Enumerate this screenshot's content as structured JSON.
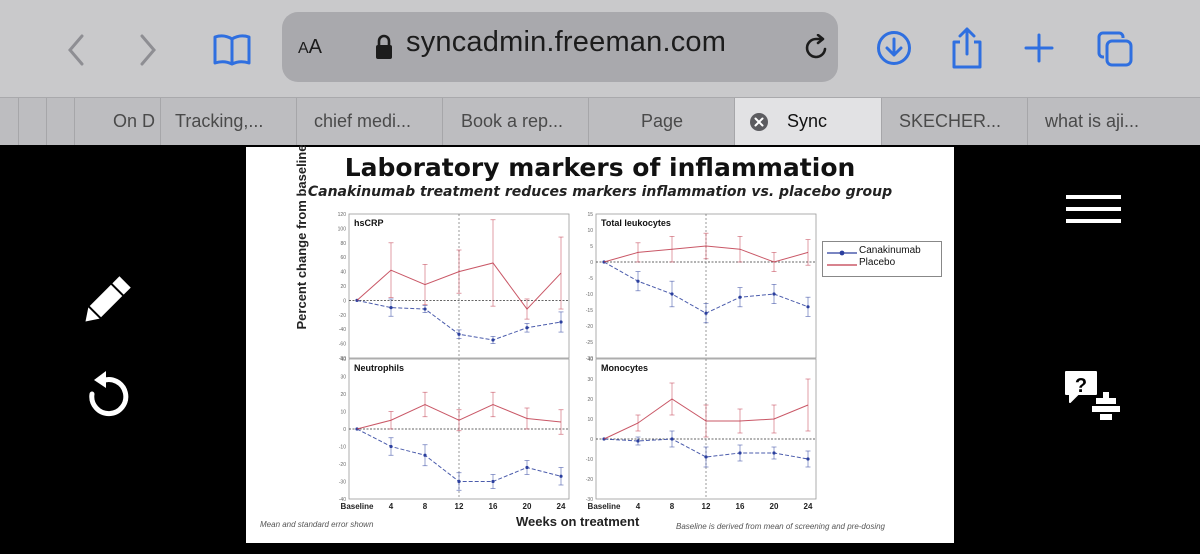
{
  "browser": {
    "url": "syncadmin.freeman.com",
    "reader_label_big": "A",
    "reader_label_small": "A",
    "tabs": [
      {
        "label": "On D",
        "active": false
      },
      {
        "label": "Tracking,...",
        "active": false
      },
      {
        "label": "chief medi...",
        "active": false
      },
      {
        "label": "Book a rep...",
        "active": false
      },
      {
        "label": "Page",
        "active": false
      },
      {
        "label": "Sync",
        "active": true
      },
      {
        "label": "SKECHER...",
        "active": false
      },
      {
        "label": "what is aji...",
        "active": false
      }
    ],
    "icons": [
      "back-icon",
      "forward-icon",
      "bookmarks-icon",
      "lock-icon",
      "reload-icon",
      "download-icon",
      "share-icon",
      "new-tab-icon",
      "tabs-overview-icon",
      "close-tab-icon"
    ]
  },
  "viewer": {
    "left_tools": [
      "pencil-icon",
      "undo-icon"
    ],
    "right_tools": [
      "menu-icon",
      "help-icon"
    ]
  },
  "slide": {
    "title": "Laboratory markers of inflammation",
    "subtitle": "Canakinumab treatment reduces markers inflammation vs. placebo group",
    "ylabel": "Percent change from baseline",
    "xlabel": "Weeks on treatment",
    "note_left": "Mean and standard error shown",
    "note_right": "Baseline is derived from mean of screening and pre-dosing",
    "legend": [
      "Canakinumab",
      "Placebo"
    ]
  },
  "chart_data": [
    {
      "type": "line",
      "title": "hsCRP",
      "x": [
        "Baseline",
        "4",
        "8",
        "12",
        "16",
        "20",
        "24"
      ],
      "ylim": [
        -80,
        120
      ],
      "yticks": [
        120,
        100,
        80,
        60,
        40,
        20,
        0,
        -20,
        -40,
        -60,
        -80
      ],
      "series": [
        {
          "name": "Canakinumab",
          "color": "#2b3f9e",
          "values": [
            0,
            -10,
            -12,
            -47,
            -55,
            -38,
            -30
          ]
        },
        {
          "name": "Placebo",
          "color": "#c0394b",
          "values": [
            0,
            42,
            22,
            40,
            52,
            -12,
            38
          ]
        }
      ]
    },
    {
      "type": "line",
      "title": "Total leukocytes",
      "x": [
        "Baseline",
        "4",
        "8",
        "12",
        "16",
        "20",
        "24"
      ],
      "ylim": [
        -30,
        15
      ],
      "yticks": [
        15,
        10,
        5,
        0,
        -5,
        -10,
        -15,
        -20,
        -25,
        -30
      ],
      "series": [
        {
          "name": "Canakinumab",
          "color": "#2b3f9e",
          "values": [
            0,
            -6,
            -10,
            -16,
            -11,
            -10,
            -14
          ]
        },
        {
          "name": "Placebo",
          "color": "#c0394b",
          "values": [
            0,
            3,
            4,
            5,
            4,
            0,
            3
          ]
        }
      ]
    },
    {
      "type": "line",
      "title": "Neutrophils",
      "x": [
        "Baseline",
        "4",
        "8",
        "12",
        "16",
        "20",
        "24"
      ],
      "ylim": [
        -40,
        40
      ],
      "yticks": [
        40,
        30,
        20,
        10,
        0,
        -10,
        -20,
        -30,
        -40
      ],
      "series": [
        {
          "name": "Canakinumab",
          "color": "#2b3f9e",
          "values": [
            0,
            -10,
            -15,
            -30,
            -30,
            -22,
            -27
          ]
        },
        {
          "name": "Placebo",
          "color": "#c0394b",
          "values": [
            0,
            5,
            14,
            5,
            14,
            6,
            4
          ]
        }
      ]
    },
    {
      "type": "line",
      "title": "Monocytes",
      "x": [
        "Baseline",
        "4",
        "8",
        "12",
        "16",
        "20",
        "24"
      ],
      "ylim": [
        -30,
        40
      ],
      "yticks": [
        40,
        30,
        20,
        10,
        0,
        -10,
        -20,
        -30
      ],
      "series": [
        {
          "name": "Canakinumab",
          "color": "#2b3f9e",
          "values": [
            0,
            -1,
            0,
            -9,
            -7,
            -7,
            -10
          ]
        },
        {
          "name": "Placebo",
          "color": "#c0394b",
          "values": [
            0,
            8,
            20,
            9,
            9,
            10,
            17
          ]
        }
      ]
    }
  ]
}
